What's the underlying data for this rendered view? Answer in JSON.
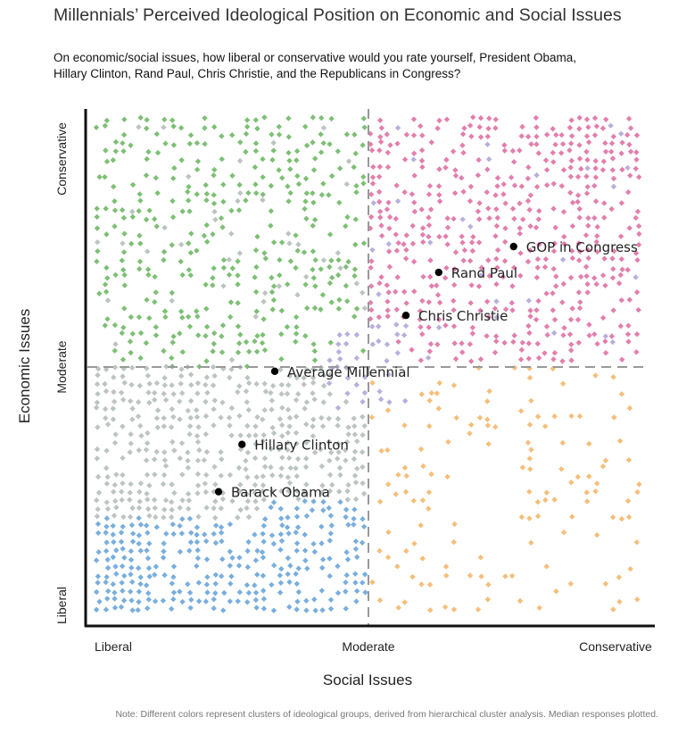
{
  "chart_data": {
    "type": "scatter",
    "title": "Millennials’ Perceived Ideological Position on Economic and Social Issues",
    "subtitle": "On economic/social issues, how liberal or conservative would you rate yourself, President Obama, Hillary Clinton, Rand Paul, Chris Christie, and the Republicans in Congress?",
    "xlabel": "Social Issues",
    "ylabel": "Economic Issues",
    "x_ticks": [
      "Liberal",
      "Moderate",
      "Conservative"
    ],
    "y_ticks": [
      "Liberal",
      "Moderate",
      "Conservative"
    ],
    "xlim": [
      1,
      7
    ],
    "ylim": [
      1,
      7
    ],
    "midline": 4,
    "note": "Note: Different colors represent clusters of ideological groups, derived from hierarchical cluster analysis. Median responses plotted.",
    "highlighted_points": [
      {
        "label": "GOP in Congress",
        "x": 5.55,
        "y": 5.4
      },
      {
        "label": "Rand Paul",
        "x": 4.75,
        "y": 5.1
      },
      {
        "label": "Chris Christie",
        "x": 4.4,
        "y": 4.6
      },
      {
        "label": "Average Millennial",
        "x": 3.0,
        "y": 3.95
      },
      {
        "label": "Hillary Clinton",
        "x": 2.65,
        "y": 3.1
      },
      {
        "label": "Barack Obama",
        "x": 2.4,
        "y": 2.55
      }
    ],
    "clusters": [
      {
        "color": "#7dbf75",
        "region": "liberal-social / conservative-economic"
      },
      {
        "color": "#e27fad",
        "region": "conservative-social / conservative-economic"
      },
      {
        "color": "#b9afdd",
        "region": "moderate"
      },
      {
        "color": "#bcc4c0",
        "region": "liberal-social / moderate-economic"
      },
      {
        "color": "#79aedd",
        "region": "liberal-social / liberal-economic"
      },
      {
        "color": "#f5be7a",
        "region": "conservative-social / liberal-economic"
      }
    ]
  }
}
